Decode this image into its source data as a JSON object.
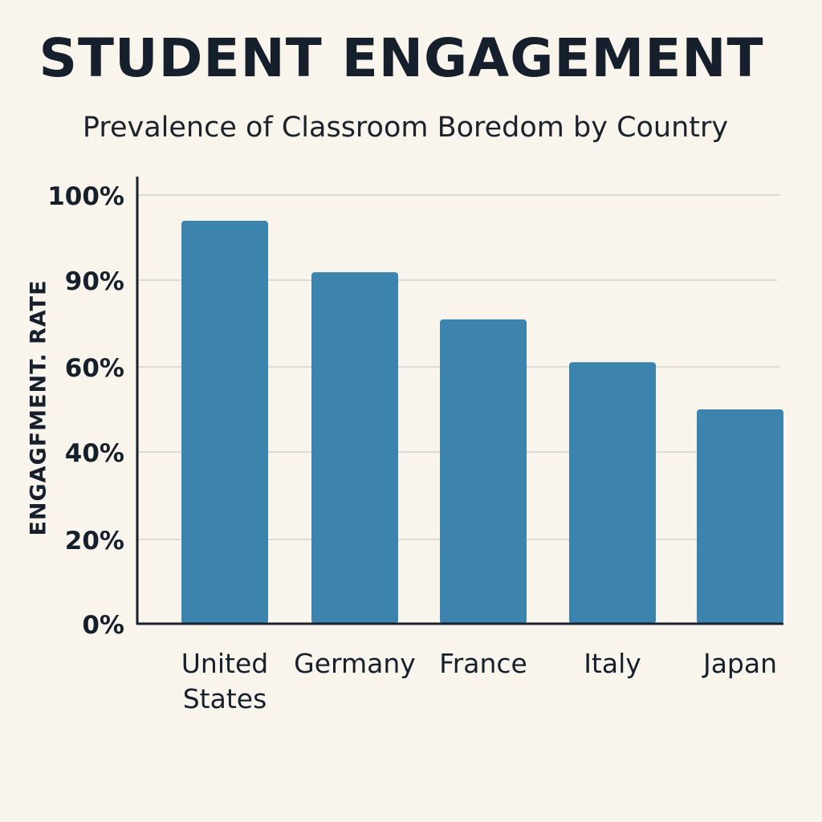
{
  "chart_data": {
    "type": "bar",
    "title": "STUDENT ENGAGEMENT",
    "subtitle": "Prevalence of Classroom Boredom by Country",
    "xlabel": "",
    "ylabel": "ENGAGFMENT. RATE",
    "categories": [
      "United States",
      "Germany",
      "France",
      "Italy",
      "Japan"
    ],
    "values": [
      94,
      82,
      71,
      61,
      50
    ],
    "y_ticks": [
      "0%",
      "20%",
      "40%",
      "60%",
      "90%",
      "100%"
    ],
    "ylim": [
      0,
      100
    ],
    "grid": true,
    "legend": "none",
    "bar_color": "#3c83ae"
  }
}
